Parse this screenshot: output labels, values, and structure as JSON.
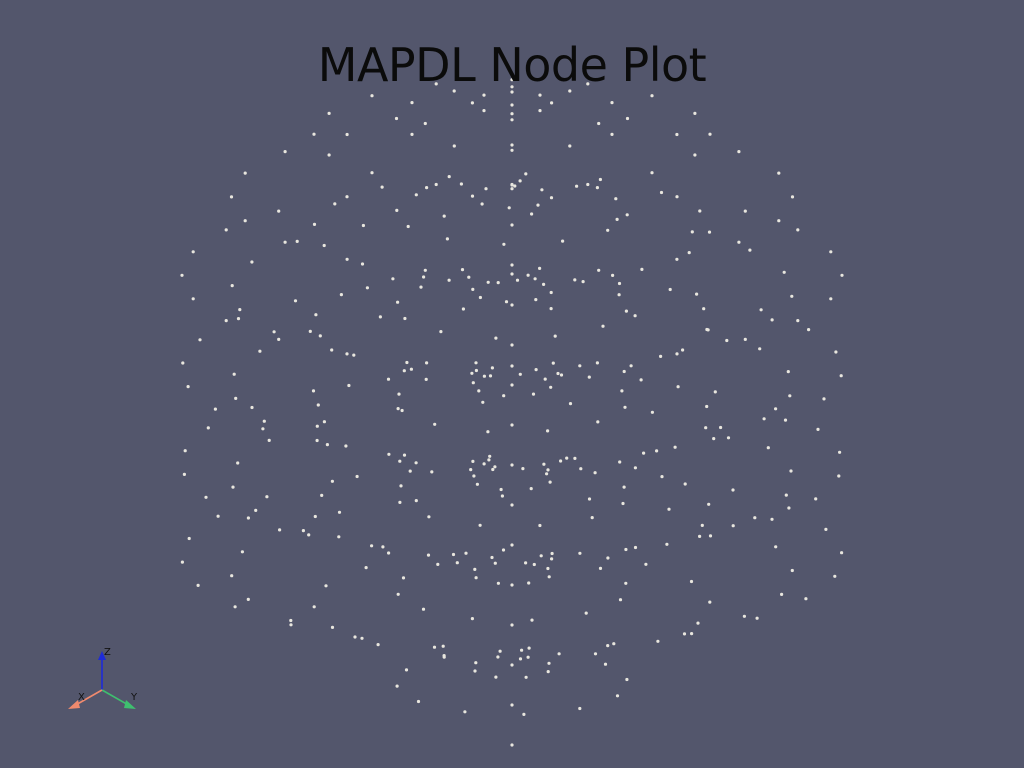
{
  "window": {
    "background": "#53566c"
  },
  "plot": {
    "title": "MAPDL Node Plot",
    "node_color": "#e8e6de",
    "node_rings": [
      {
        "radius": 0.12,
        "count": 8,
        "z_levels": [
          0.9,
          0.6,
          0.3,
          0.0,
          -0.3,
          -0.6,
          -0.9
        ]
      },
      {
        "radius": 0.35,
        "count": 12,
        "z_levels": [
          0.85,
          0.55,
          0.25,
          -0.05,
          -0.35,
          -0.65,
          -0.95
        ]
      },
      {
        "radius": 0.6,
        "count": 16,
        "z_levels": [
          0.8,
          0.5,
          0.2,
          -0.1,
          -0.4,
          -0.7
        ]
      },
      {
        "radius": 0.85,
        "count": 20,
        "z_levels": [
          0.6,
          0.3,
          0.0,
          -0.3,
          -0.6
        ]
      },
      {
        "radius": 1.0,
        "count": 24,
        "z_levels": [
          0.35,
          0.05,
          -0.25,
          -0.55
        ]
      }
    ]
  },
  "axes": {
    "x_label": "X",
    "y_label": "Y",
    "z_label": "Z",
    "x_color": "#f08a6e",
    "y_color": "#3fbf6f",
    "z_color": "#1d2bd8"
  }
}
